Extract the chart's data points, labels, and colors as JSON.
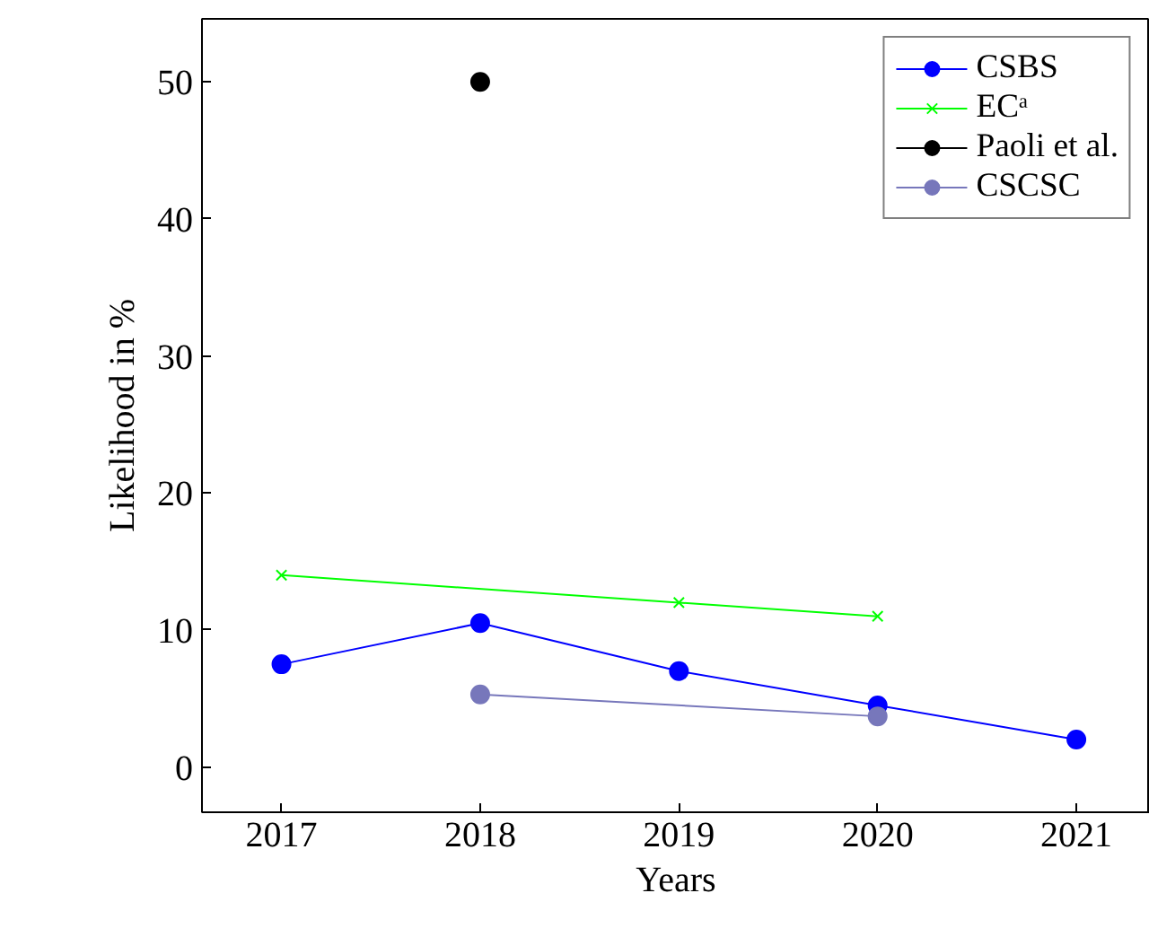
{
  "chart_data": {
    "type": "line",
    "xlabel": "Years",
    "ylabel": "Likelihood in %",
    "x": [
      2017,
      2018,
      2019,
      2020,
      2021
    ],
    "xlim": [
      2016.6,
      2021.37
    ],
    "xticks": [
      2017,
      2018,
      2019,
      2020,
      2021
    ],
    "ylim": [
      -3.3,
      54.6
    ],
    "yticks": [
      0,
      10,
      20,
      30,
      40,
      50
    ],
    "grid": false,
    "legend": "top right",
    "series": [
      {
        "name": "CSBS",
        "color": "#0000ff",
        "marker": "circle",
        "values": [
          7.5,
          10.5,
          7,
          4.5,
          2
        ]
      },
      {
        "name": "ECᵃ",
        "color": "#00ff00",
        "marker": "cross",
        "values": [
          14,
          12,
          11
        ],
        "x": [
          2017,
          2019,
          2020
        ]
      },
      {
        "name": "Paoli et al.",
        "color": "#000000",
        "marker": "circle",
        "values": [
          50
        ],
        "x": [
          2018
        ]
      },
      {
        "name": "CSCSC",
        "color": "#7777bb",
        "marker": "circle",
        "values": [
          5.3,
          3.7
        ],
        "x": [
          2018,
          2020
        ]
      }
    ]
  }
}
